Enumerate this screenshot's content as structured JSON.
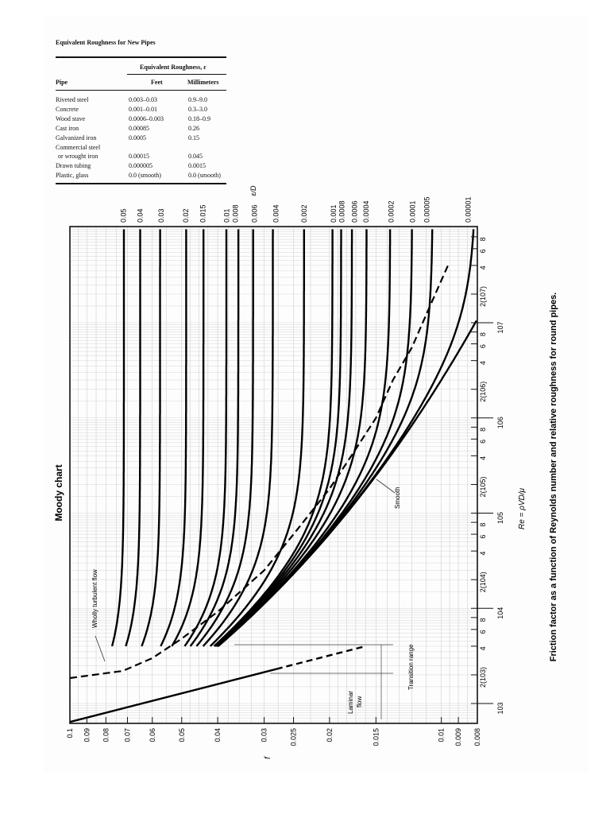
{
  "table": {
    "title": "Equivalent Roughness for New Pipes",
    "group_header": "Equivalent Roughness, ε",
    "columns": [
      "Pipe",
      "Feet",
      "Millimeters"
    ],
    "rows": [
      {
        "pipe": "Riveted steel",
        "feet": "0.003–0.03",
        "mm": "0.9–9.0"
      },
      {
        "pipe": "Concrete",
        "feet": "0.001–0.01",
        "mm": "0.3–3.0"
      },
      {
        "pipe": "Wood stave",
        "feet": "0.0006–0.003",
        "mm": "0.18–0.9"
      },
      {
        "pipe": "Cast iron",
        "feet": "0.00085",
        "mm": "0.26"
      },
      {
        "pipe": "Galvanized iron",
        "feet": "0.0005",
        "mm": "0.15"
      },
      {
        "pipe": "Commercial steel",
        "pipe2": "or wrought iron",
        "feet": "0.00015",
        "mm": "0.045"
      },
      {
        "pipe": "Drawn tubing",
        "feet": "0.000005",
        "mm": "0.0015"
      },
      {
        "pipe": "Plastic, glass",
        "feet": "0.0 (smooth)",
        "mm": "0.0 (smooth)"
      }
    ]
  },
  "chart_data": {
    "type": "line",
    "title": "Moody chart",
    "caption": "Friction factor as a function of Reynolds number and relative roughness for round pipes.",
    "orientation": "rotated 90° counter-clockwise on page",
    "xlabel": "Re = ρVD/μ",
    "ylabel": "f",
    "right_axis_label": "ε/D",
    "x_scale": "log",
    "y_scale": "log",
    "xlim": [
      600,
      100000000
    ],
    "ylim": [
      0.008,
      0.1
    ],
    "grid": true,
    "x_major_ticks": [
      "10^3",
      "10^4",
      "10^5",
      "10^6",
      "10^7"
    ],
    "x_minor_tick_labels": [
      "2(10^3)",
      "4",
      "6",
      "8",
      "2(10^4)",
      "4",
      "6",
      "8",
      "2(10^5)",
      "4",
      "6",
      "8",
      "2(10^6)",
      "4",
      "6",
      "8",
      "2(10^7)",
      "4",
      "6",
      "8"
    ],
    "y_ticks": [
      0.1,
      0.09,
      0.08,
      0.07,
      0.06,
      0.05,
      0.04,
      0.03,
      0.025,
      0.02,
      0.015,
      0.01,
      0.009,
      0.008
    ],
    "y_tick_labels": [
      "0.1",
      "0.09",
      "0.08",
      "0.07",
      "0.06",
      "0.05",
      "0.04",
      "0.03",
      "0.025",
      "0.02",
      "0.015",
      "0.01",
      "0.009",
      "0.008"
    ],
    "relative_roughness_labels": [
      "0.05",
      "0.04",
      "0.03",
      "0.02",
      "0.015",
      "0.01",
      "0.008",
      "0.006",
      "0.004",
      "0.002",
      "0.001",
      "0.0008",
      "0.0006",
      "0.0004",
      "0.0002",
      "0.0001",
      "0.00005",
      "0.00001"
    ],
    "series": [
      {
        "name": "ε/D = 0.05",
        "f_fully_rough": 0.072
      },
      {
        "name": "ε/D = 0.04",
        "f_fully_rough": 0.065
      },
      {
        "name": "ε/D = 0.03",
        "f_fully_rough": 0.057
      },
      {
        "name": "ε/D = 0.02",
        "f_fully_rough": 0.049
      },
      {
        "name": "ε/D = 0.015",
        "f_fully_rough": 0.044
      },
      {
        "name": "ε/D = 0.01",
        "f_fully_rough": 0.038
      },
      {
        "name": "ε/D = 0.008",
        "f_fully_rough": 0.036
      },
      {
        "name": "ε/D = 0.006",
        "f_fully_rough": 0.032
      },
      {
        "name": "ε/D = 0.004",
        "f_fully_rough": 0.028
      },
      {
        "name": "ε/D = 0.002",
        "f_fully_rough": 0.0235
      },
      {
        "name": "ε/D = 0.001",
        "f_fully_rough": 0.0196
      },
      {
        "name": "ε/D = 0.0008",
        "f_fully_rough": 0.0186
      },
      {
        "name": "ε/D = 0.0006",
        "f_fully_rough": 0.0172
      },
      {
        "name": "ε/D = 0.0004",
        "f_fully_rough": 0.016
      },
      {
        "name": "ε/D = 0.0002",
        "f_fully_rough": 0.0137
      },
      {
        "name": "ε/D = 0.0001",
        "f_fully_rough": 0.012
      },
      {
        "name": "ε/D = 0.00005",
        "f_fully_rough": 0.011
      },
      {
        "name": "ε/D = 0.00001",
        "f_fully_rough": 0.0085
      },
      {
        "name": "Smooth",
        "x": [
          4000,
          10000,
          100000,
          1000000,
          10000000
        ],
        "y": [
          0.04,
          0.031,
          0.018,
          0.0116,
          0.0081
        ]
      },
      {
        "name": "Laminar flow (f = 64/Re)",
        "x": [
          640,
          1000,
          2000,
          4000
        ],
        "y": [
          0.1,
          0.064,
          0.032,
          0.016
        ]
      }
    ],
    "annotations": [
      "Wholly turbulent flow",
      "Laminar flow",
      "Transition range",
      "Smooth"
    ]
  }
}
